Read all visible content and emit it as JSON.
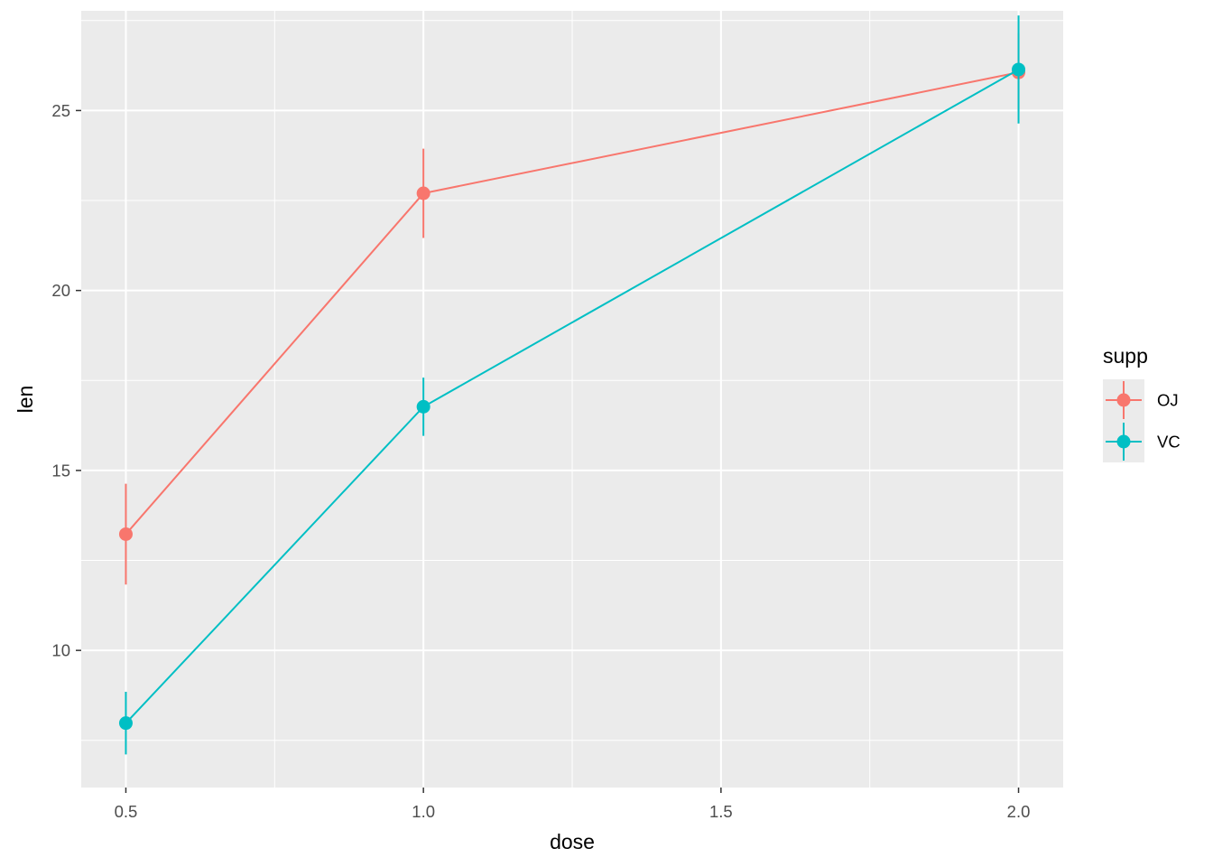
{
  "chart_data": {
    "type": "line",
    "xlabel": "dose",
    "ylabel": "len",
    "xlim": [
      0.425,
      2.075
    ],
    "ylim": [
      6.19,
      27.77
    ],
    "x_ticks": [
      0.5,
      1.0,
      1.5,
      2.0
    ],
    "x_tick_labels": [
      "0.5",
      "1.0",
      "1.5",
      "2.0"
    ],
    "y_ticks": [
      10,
      15,
      20,
      25
    ],
    "y_tick_labels": [
      "10",
      "15",
      "20",
      "25"
    ],
    "grid": true,
    "legend": {
      "title": "supp",
      "position": "right"
    },
    "series": [
      {
        "name": "OJ",
        "color": "#F8766D",
        "x": [
          0.5,
          1.0,
          2.0
        ],
        "y": [
          13.23,
          22.7,
          26.06
        ],
        "ymin": [
          11.83,
          21.46,
          24.97
        ],
        "ymax": [
          14.63,
          23.94,
          27.15
        ]
      },
      {
        "name": "VC",
        "color": "#00BFC4",
        "x": [
          0.5,
          1.0,
          2.0
        ],
        "y": [
          7.98,
          16.77,
          26.14
        ],
        "ymin": [
          7.11,
          15.96,
          24.64
        ],
        "ymax": [
          8.85,
          17.58,
          27.64
        ]
      }
    ]
  }
}
